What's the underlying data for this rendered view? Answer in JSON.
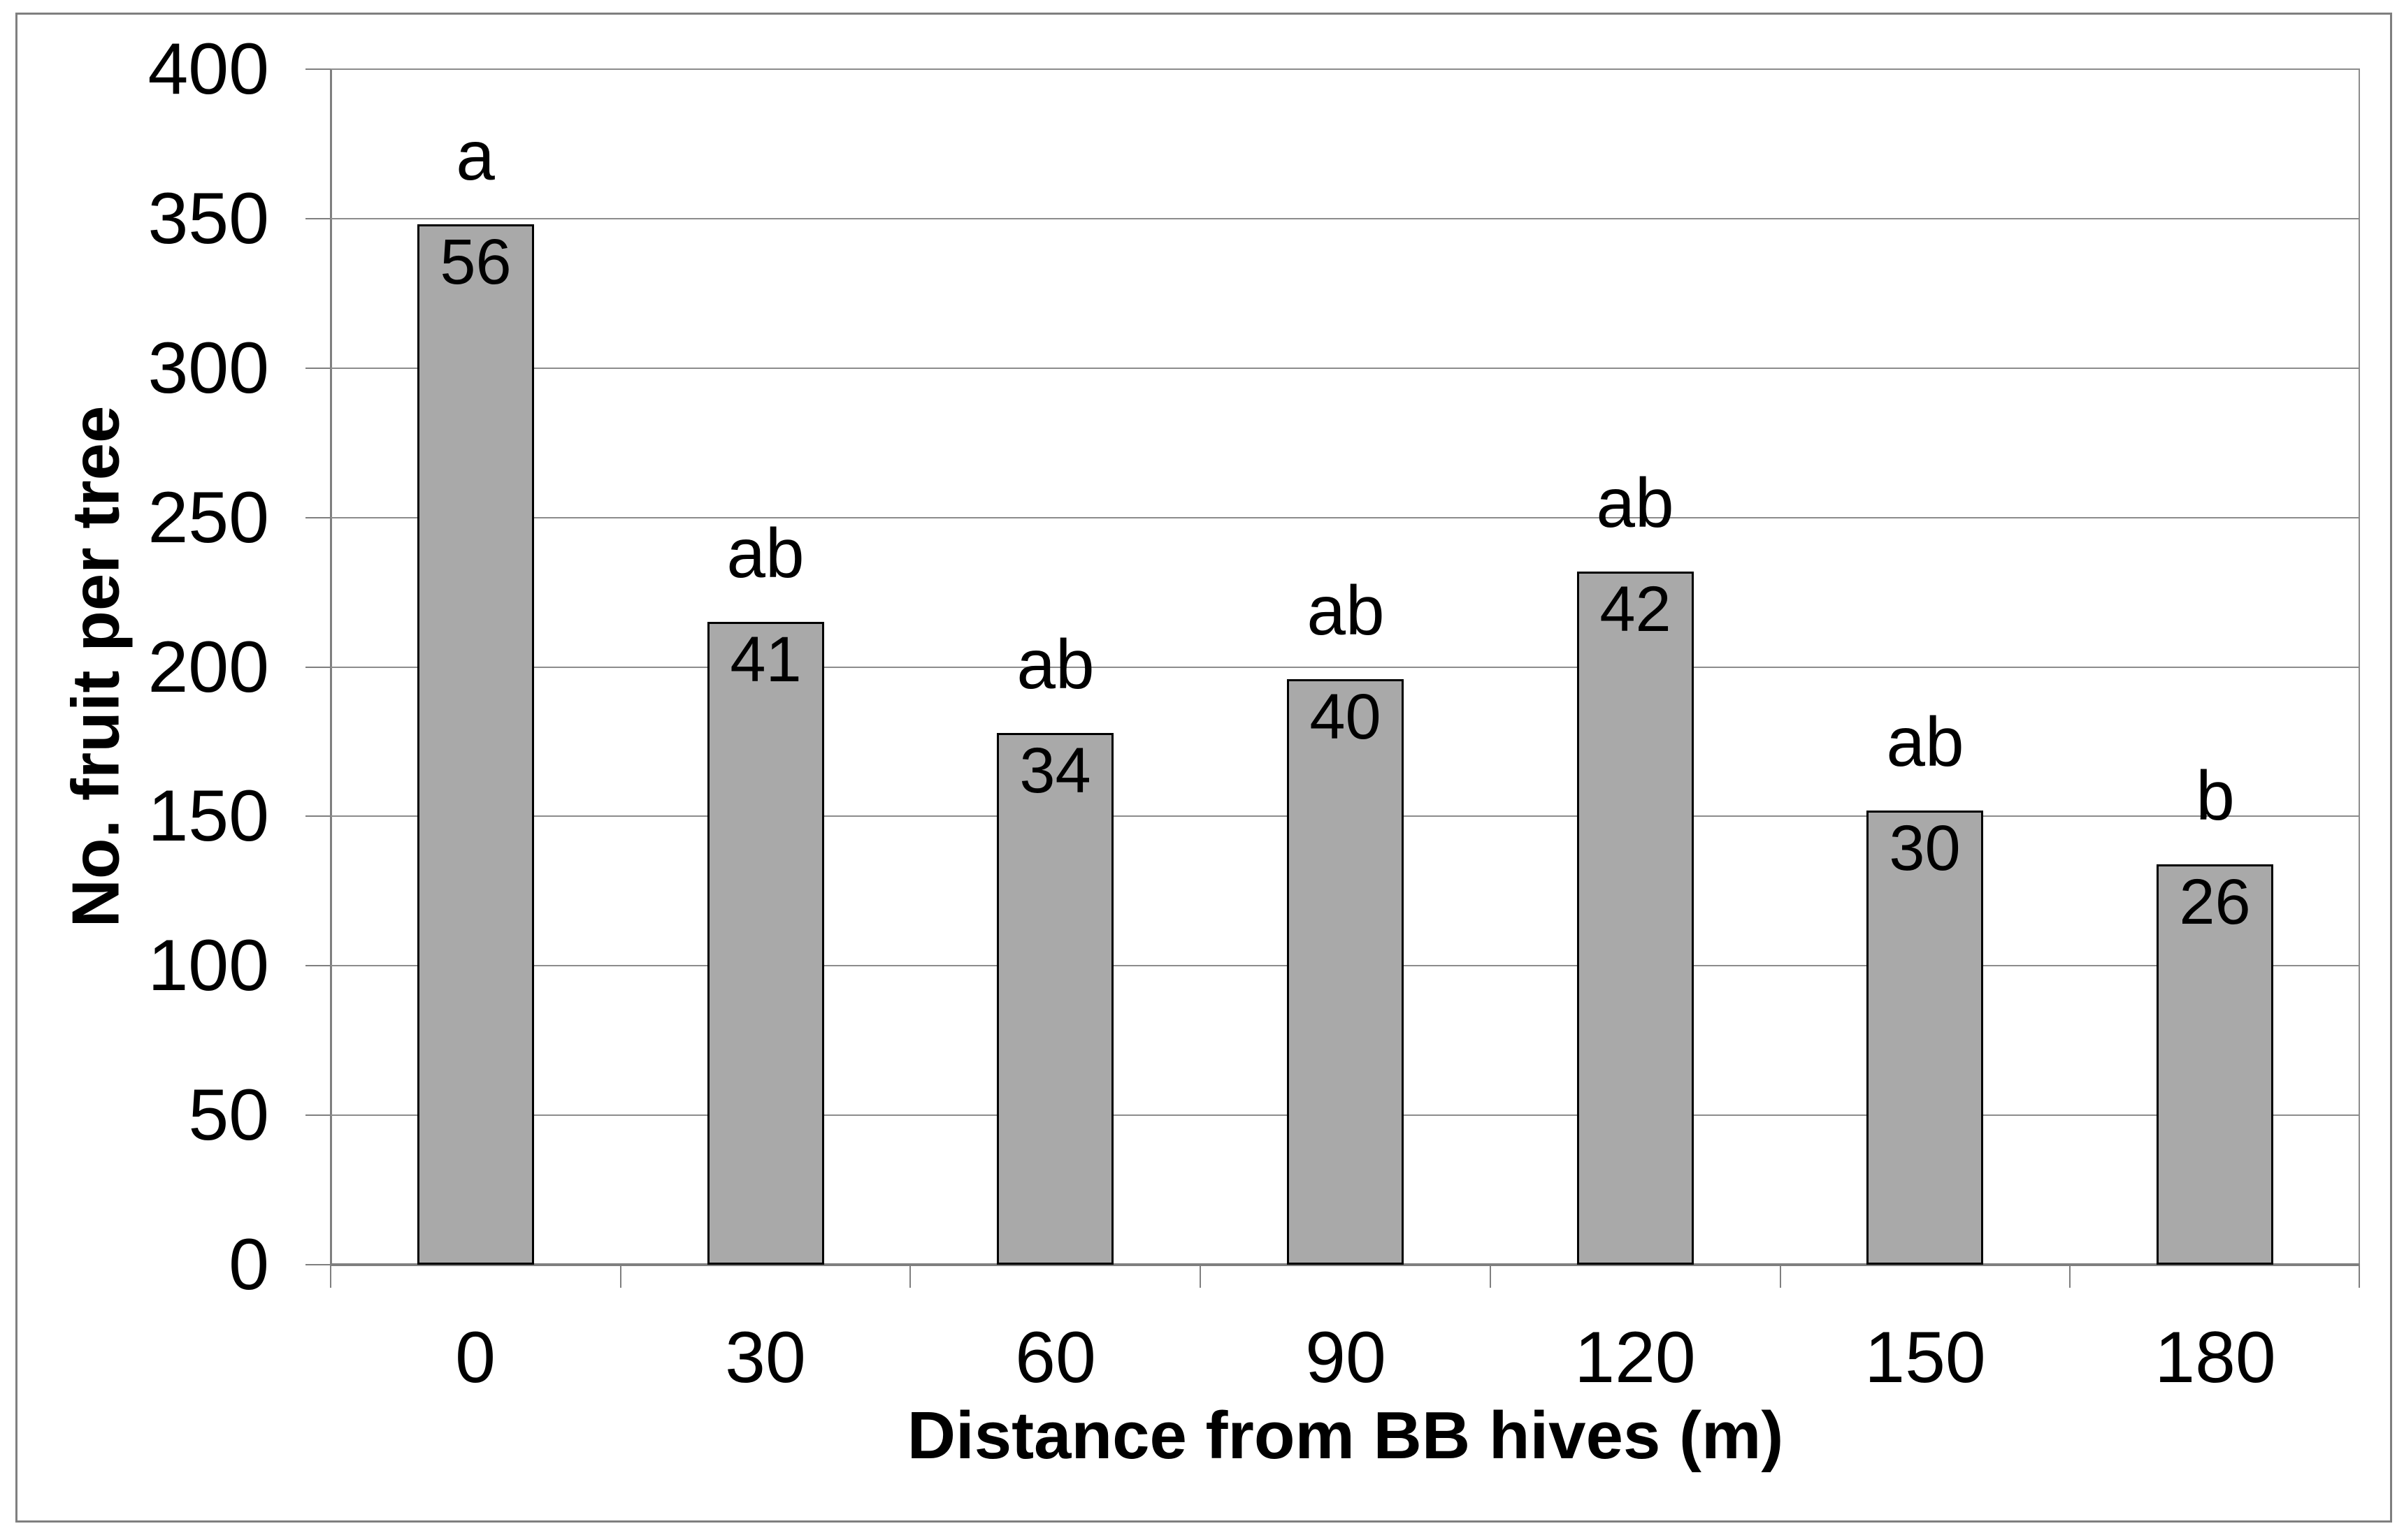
{
  "chart_data": {
    "type": "bar",
    "xlabel": "Distance from BB hives (m)",
    "ylabel": "No. fruit per tree",
    "categories": [
      "0",
      "30",
      "60",
      "90",
      "120",
      "150",
      "180"
    ],
    "values": [
      348,
      215,
      178,
      196,
      232,
      152,
      134
    ],
    "significance_letters": [
      "a",
      "ab",
      "ab",
      "ab",
      "ab",
      "ab",
      "b"
    ],
    "bar_inside_labels": [
      "56",
      "41",
      "34",
      "40",
      "42",
      "30",
      "26"
    ],
    "ylim": [
      0,
      400
    ],
    "yticks": [
      0,
      50,
      100,
      150,
      200,
      250,
      300,
      350,
      400
    ],
    "grid": "horizontal gridlines at every 50 units",
    "legend_position": "none",
    "colors": {
      "bar_fill": "#a9a9a9",
      "bar_border": "#000000",
      "gridline": "#8c8c8c",
      "axis": "#7f7f7f",
      "frame": "#7f7f7f",
      "text": "#000000",
      "background": "#ffffff"
    }
  }
}
